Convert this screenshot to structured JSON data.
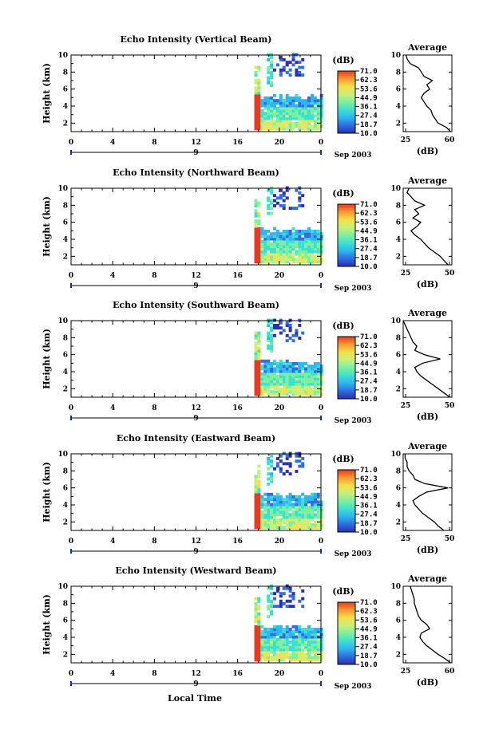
{
  "figure": {
    "xlabel": "Local Time",
    "date_label": "Sep 2003",
    "day_label": "9",
    "colorbar_unit": "(dB)",
    "colorbar_ticks": [
      "71.0",
      "62.3",
      "53.6",
      "44.9",
      "36.1",
      "27.4",
      "18.7",
      "10.0"
    ],
    "colorscale": [
      "#2a2fb0",
      "#2f6de0",
      "#2fb5f0",
      "#3ce0d0",
      "#7df0a0",
      "#c8f07a",
      "#f4e04a",
      "#f89a30",
      "#e83a20"
    ],
    "avg_title": "Average",
    "avg_xlabel": "(dB)"
  },
  "chart_data": [
    {
      "type": "heatmap",
      "title": "Echo Intensity (Vertical Beam)",
      "ylabel": "Height (km)",
      "x_ticks": [
        "0",
        "4",
        "8",
        "12",
        "16",
        "20",
        "0"
      ],
      "y_ticks": [
        "2",
        "4",
        "6",
        "8",
        "10"
      ],
      "xlim": [
        0,
        24
      ],
      "ylim": [
        1,
        10
      ],
      "avg_profile": {
        "xlim": [
          25,
          60
        ],
        "x_ticks": [
          "25",
          "60"
        ],
        "height_km": [
          1,
          1.5,
          2,
          2.5,
          3,
          3.5,
          4,
          4.5,
          5,
          5.5,
          6,
          6.5,
          7,
          7.5,
          8,
          8.5,
          9,
          9.5,
          10
        ],
        "db": [
          59,
          56,
          50,
          48,
          46,
          45,
          42,
          40,
          38,
          40,
          44,
          42,
          46,
          40,
          38,
          36,
          30,
          28,
          27
        ]
      }
    },
    {
      "type": "heatmap",
      "title": "Echo Intensity (Northward Beam)",
      "ylabel": "Height (km)",
      "x_ticks": [
        "0",
        "4",
        "8",
        "12",
        "16",
        "20",
        "0"
      ],
      "y_ticks": [
        "2",
        "4",
        "6",
        "8",
        "10"
      ],
      "xlim": [
        0,
        24
      ],
      "ylim": [
        1,
        10
      ],
      "avg_profile": {
        "xlim": [
          25,
          50
        ],
        "x_ticks": [
          "25",
          "50"
        ],
        "height_km": [
          1,
          1.5,
          2,
          2.5,
          3,
          3.5,
          4,
          4.5,
          5,
          5.5,
          6,
          6.5,
          7,
          7.5,
          8,
          8.5,
          9,
          9.5,
          10
        ],
        "db": [
          48,
          46,
          44,
          41,
          38,
          36,
          34,
          31,
          29,
          32,
          34,
          30,
          33,
          31,
          36,
          31,
          29,
          27,
          28
        ]
      }
    },
    {
      "type": "heatmap",
      "title": "Echo Intensity (Southward Beam)",
      "ylabel": "Height (km)",
      "x_ticks": [
        "0",
        "4",
        "8",
        "12",
        "16",
        "20",
        "0"
      ],
      "y_ticks": [
        "2",
        "4",
        "6",
        "8",
        "10"
      ],
      "xlim": [
        0,
        24
      ],
      "ylim": [
        1,
        10
      ],
      "avg_profile": {
        "xlim": [
          25,
          50
        ],
        "x_ticks": [
          "25",
          "50"
        ],
        "height_km": [
          1,
          1.5,
          2,
          2.5,
          3,
          3.5,
          4,
          4.5,
          5,
          5.5,
          6,
          6.5,
          7,
          7.5,
          8,
          8.5,
          9,
          9.5,
          10
        ],
        "db": [
          49,
          46,
          43,
          40,
          37,
          34,
          32,
          31,
          35,
          44,
          36,
          31,
          32,
          30,
          29,
          28,
          27,
          26,
          25
        ]
      }
    },
    {
      "type": "heatmap",
      "title": "Echo Intensity (Eastward Beam)",
      "ylabel": "Height (km)",
      "x_ticks": [
        "0",
        "4",
        "8",
        "12",
        "16",
        "20",
        "0"
      ],
      "y_ticks": [
        "2",
        "4",
        "6",
        "8",
        "10"
      ],
      "xlim": [
        0,
        24
      ],
      "ylim": [
        1,
        10
      ],
      "avg_profile": {
        "xlim": [
          25,
          50
        ],
        "x_ticks": [
          "25",
          "50"
        ],
        "height_km": [
          1,
          1.5,
          2,
          2.5,
          3,
          3.5,
          4,
          4.5,
          5,
          5.5,
          6,
          6.5,
          7,
          7.5,
          8,
          8.5,
          9,
          9.5,
          10
        ],
        "db": [
          46,
          43,
          41,
          38,
          35,
          33,
          31,
          30,
          33,
          37,
          48,
          36,
          31,
          30,
          28,
          27,
          27,
          26,
          26
        ]
      }
    },
    {
      "type": "heatmap",
      "title": "Echo Intensity (Westward Beam)",
      "ylabel": "Height (km)",
      "x_ticks": [
        "0",
        "4",
        "8",
        "12",
        "16",
        "20",
        "0"
      ],
      "y_ticks": [
        "2",
        "4",
        "6",
        "8",
        "10"
      ],
      "xlim": [
        0,
        24
      ],
      "ylim": [
        1,
        10
      ],
      "avg_profile": {
        "xlim": [
          25,
          60
        ],
        "x_ticks": [
          "25",
          "60"
        ],
        "height_km": [
          1,
          1.5,
          2,
          2.5,
          3,
          3.5,
          4,
          4.5,
          5,
          5.5,
          6,
          6.5,
          7,
          7.5,
          8,
          8.5,
          9,
          9.5,
          10
        ],
        "db": [
          59,
          55,
          50,
          46,
          42,
          39,
          37,
          38,
          44,
          42,
          38,
          36,
          35,
          34,
          33,
          33,
          32,
          31,
          30
        ]
      }
    }
  ]
}
